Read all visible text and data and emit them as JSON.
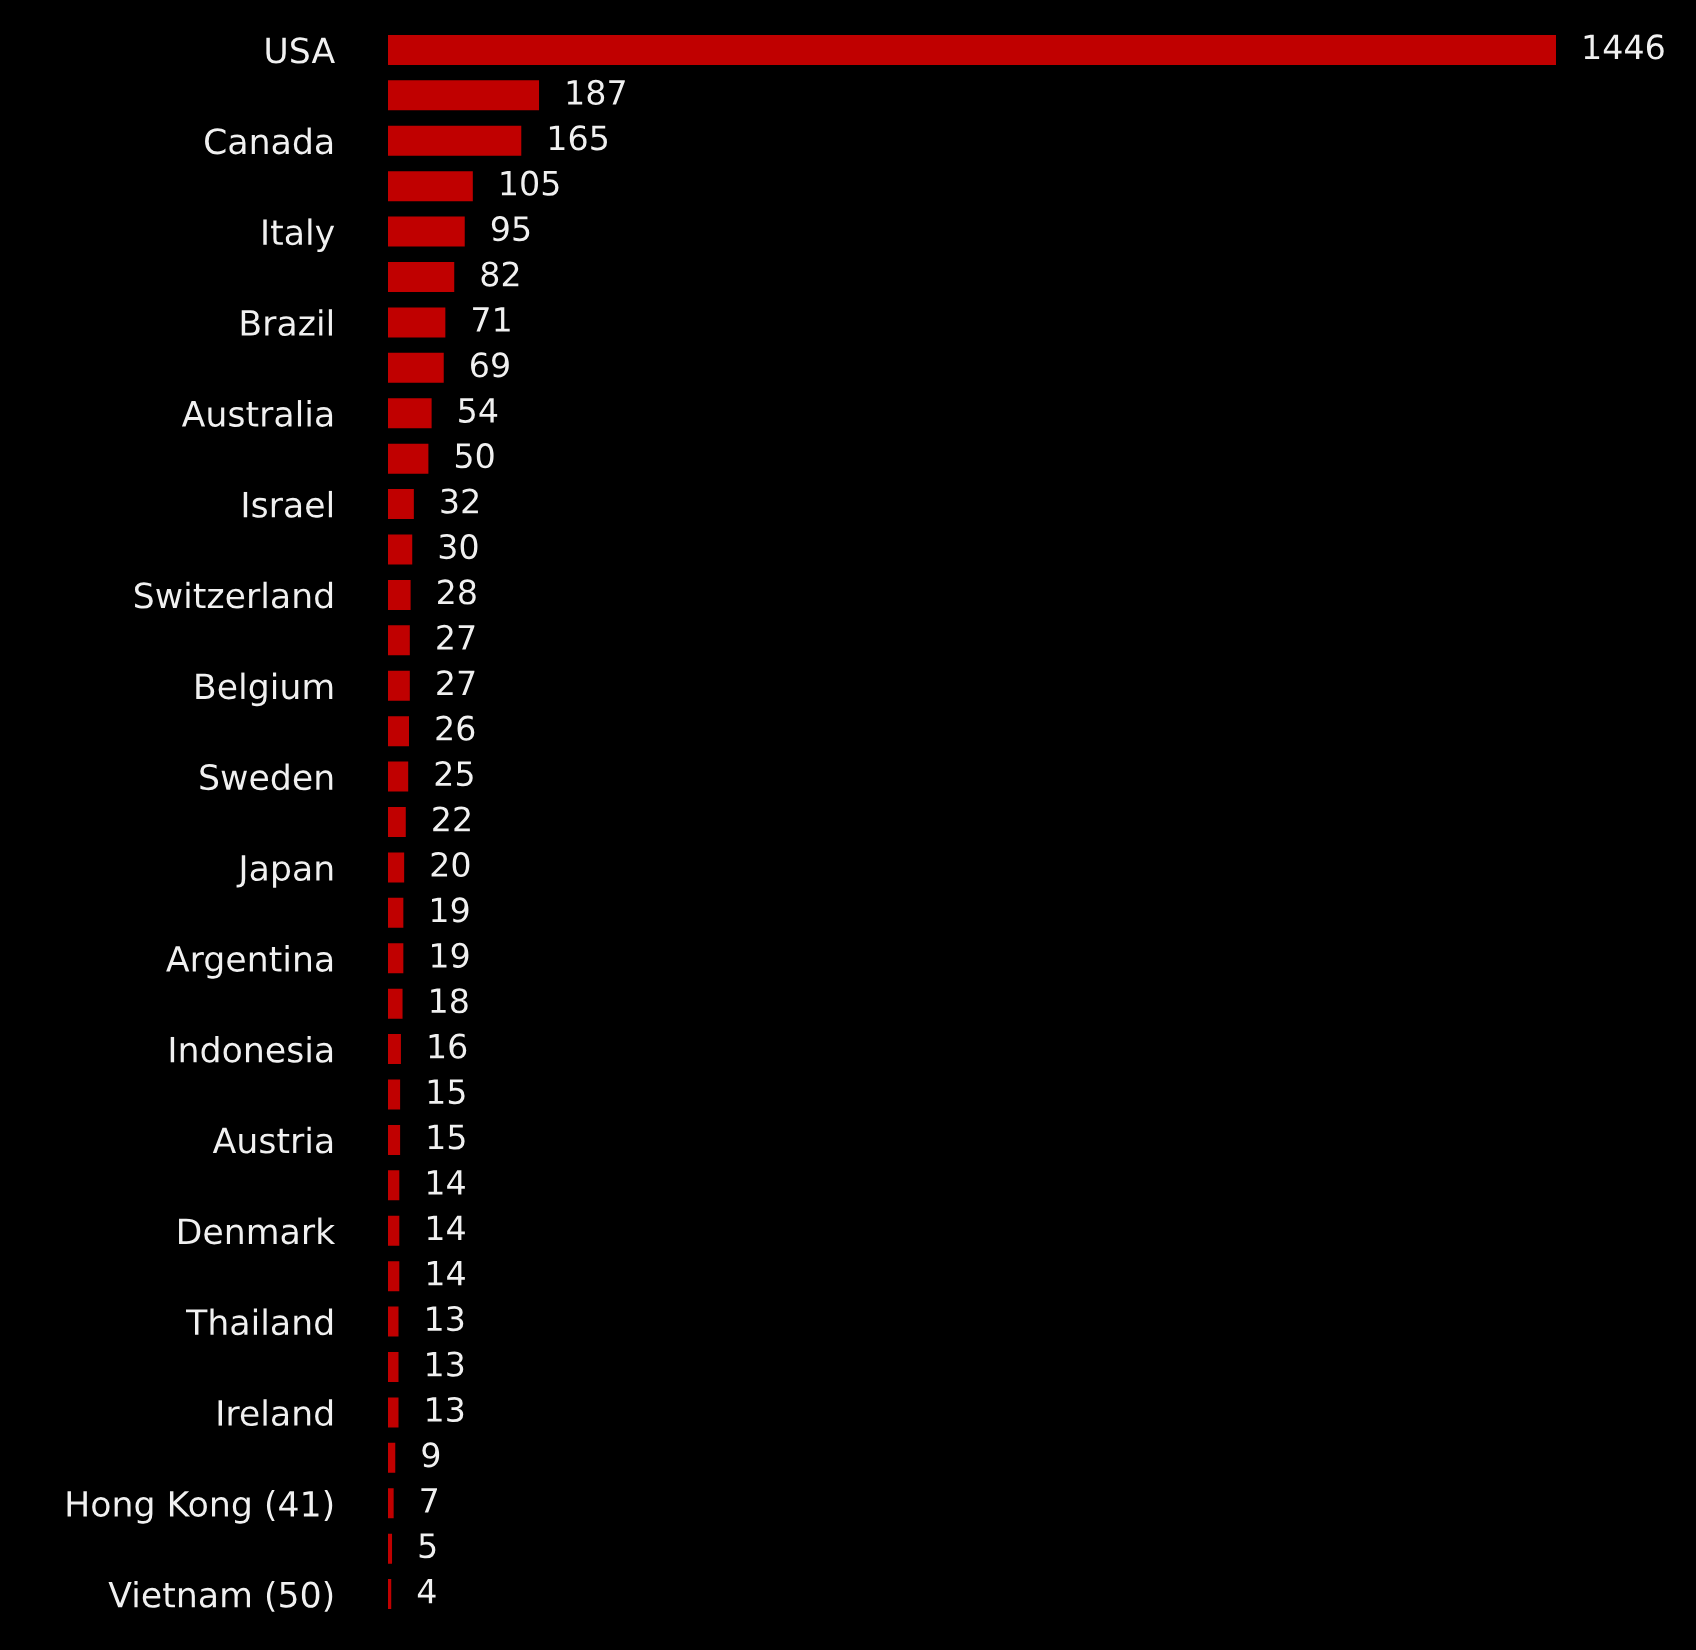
{
  "chart_data": {
    "type": "bar",
    "orientation": "horizontal",
    "categories": [
      "USA",
      null,
      "Canada",
      null,
      "Italy",
      null,
      "Brazil",
      null,
      "Australia",
      null,
      "Israel",
      null,
      "Switzerland",
      null,
      "Belgium",
      null,
      "Sweden",
      null,
      "Japan",
      null,
      "Argentina",
      null,
      "Indonesia",
      null,
      "Austria",
      null,
      "Denmark",
      null,
      "Thailand",
      null,
      "Ireland",
      null,
      "Hong Kong (41)",
      null,
      "Vietnam (50)"
    ],
    "values": [
      1446,
      187,
      165,
      105,
      95,
      82,
      71,
      69,
      54,
      50,
      32,
      30,
      28,
      27,
      27,
      26,
      25,
      22,
      20,
      19,
      19,
      18,
      16,
      15,
      15,
      14,
      14,
      14,
      13,
      13,
      13,
      9,
      7,
      5,
      4
    ],
    "color": "#c00000",
    "data_labels": true,
    "grid": false,
    "legend": false
  }
}
